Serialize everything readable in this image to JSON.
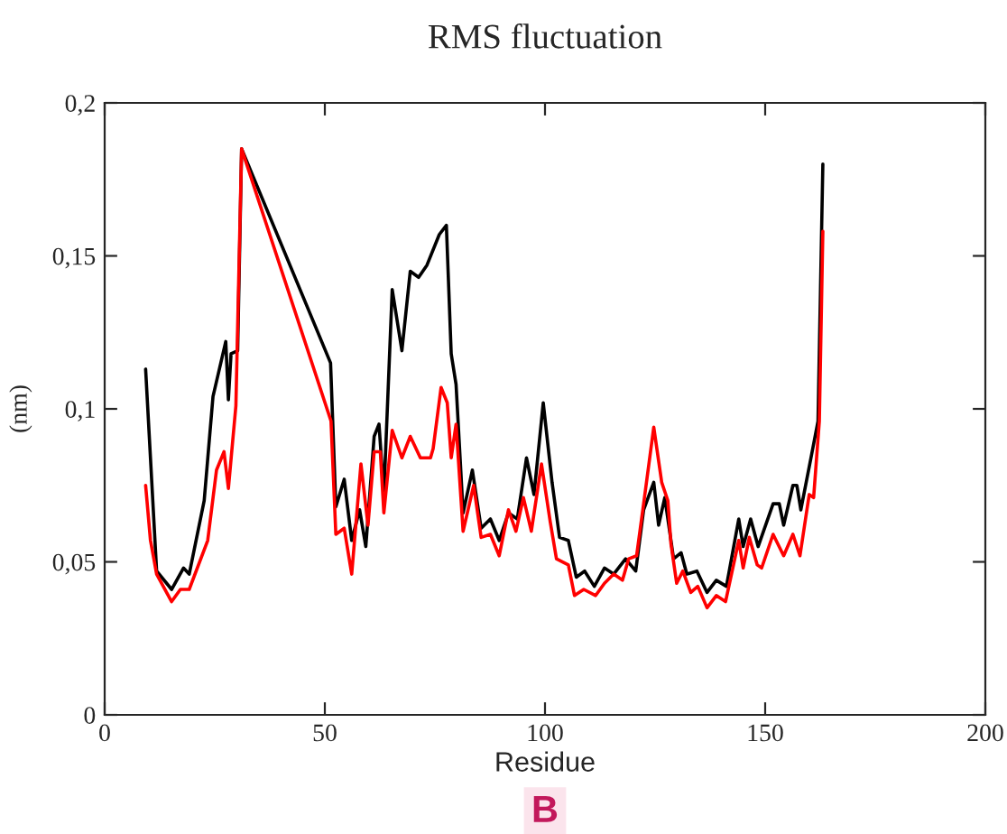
{
  "chart_data": {
    "type": "line",
    "title": "RMS fluctuation",
    "xlabel": "Residue",
    "ylabel": "(nm)",
    "xlim": [
      0,
      200
    ],
    "xticks": [
      0,
      50,
      100,
      150,
      200
    ],
    "ylim": [
      0,
      0.2
    ],
    "yticks": [
      {
        "value": 0,
        "label": "0"
      },
      {
        "value": 0.05,
        "label": "0,05"
      },
      {
        "value": 0.1,
        "label": "0,1"
      },
      {
        "value": 0.15,
        "label": "0,15"
      },
      {
        "value": 0.2,
        "label": "0,2"
      }
    ],
    "grid": false,
    "marker": "none",
    "line_style": "solid",
    "annotations": [
      "B"
    ],
    "series": [
      {
        "color": "#000000",
        "x": [
          9.3,
          11.8,
          15.2,
          17.9,
          19.2,
          22.6,
          24.6,
          27.5,
          28.1,
          28.7,
          30.2,
          31.1,
          51.3,
          52.5,
          54.4,
          56.1,
          57.9,
          59.3,
          61.2,
          62.3,
          63.4,
          65.3,
          67.5,
          69.4,
          71.3,
          73.2,
          76,
          77.6,
          78.7,
          79.8,
          81.4,
          83.5,
          85.5,
          87.6,
          89.6,
          91.7,
          93.7,
          95.8,
          97.5,
          99.6,
          101.6,
          103.3,
          105.3,
          107.1,
          109,
          111.2,
          113.5,
          115.6,
          118.3,
          120.6,
          122.4,
          124.7,
          125.8,
          127.2,
          129.2,
          130.9,
          132.2,
          134.5,
          136.8,
          138.9,
          141.2,
          144,
          145,
          146.7,
          148.4,
          151.8,
          153.2,
          154.2,
          156.3,
          157.2,
          158.1,
          160.4,
          162,
          163.1
        ],
        "values": [
          0.113,
          0.047,
          0.041,
          0.048,
          0.046,
          0.07,
          0.104,
          0.122,
          0.103,
          0.118,
          0.119,
          0.185,
          0.115,
          0.068,
          0.077,
          0.057,
          0.067,
          0.055,
          0.091,
          0.095,
          0.072,
          0.139,
          0.119,
          0.145,
          0.143,
          0.147,
          0.157,
          0.16,
          0.118,
          0.108,
          0.066,
          0.08,
          0.061,
          0.064,
          0.057,
          0.066,
          0.064,
          0.084,
          0.072,
          0.102,
          0.076,
          0.058,
          0.057,
          0.045,
          0.047,
          0.042,
          0.048,
          0.046,
          0.051,
          0.047,
          0.067,
          0.076,
          0.062,
          0.071,
          0.051,
          0.053,
          0.046,
          0.047,
          0.04,
          0.044,
          0.042,
          0.064,
          0.055,
          0.064,
          0.055,
          0.069,
          0.069,
          0.062,
          0.075,
          0.075,
          0.067,
          0.084,
          0.096,
          0.18
        ]
      },
      {
        "color": "#ff0000",
        "x": [
          9.3,
          10.4,
          11.8,
          15.2,
          17.2,
          19.2,
          23.4,
          25.4,
          27.1,
          28.1,
          29.8,
          31.1,
          51.4,
          52.5,
          54.4,
          56.1,
          58.2,
          59.8,
          61.2,
          62.6,
          63.4,
          65.3,
          67.5,
          69.4,
          71.7,
          74,
          74.6,
          76.4,
          77.8,
          78.7,
          79.8,
          81.4,
          83.8,
          85.5,
          87.6,
          89.6,
          91.7,
          93.4,
          95.1,
          96.9,
          99.2,
          101.2,
          102.6,
          105.3,
          106.7,
          108.8,
          111.5,
          113.5,
          115.6,
          117.6,
          119,
          120.8,
          122.4,
          124.7,
          126.5,
          127.9,
          128.6,
          129.9,
          131.3,
          133.1,
          134.7,
          136.8,
          138.9,
          141,
          144,
          145,
          146.4,
          148.2,
          149.2,
          151.8,
          154.2,
          156.3,
          157.9,
          160,
          161,
          162.3,
          163.1
        ],
        "values": [
          0.075,
          0.057,
          0.046,
          0.037,
          0.041,
          0.041,
          0.057,
          0.08,
          0.086,
          0.074,
          0.101,
          0.185,
          0.096,
          0.059,
          0.061,
          0.046,
          0.082,
          0.062,
          0.086,
          0.086,
          0.066,
          0.093,
          0.084,
          0.091,
          0.084,
          0.084,
          0.087,
          0.107,
          0.102,
          0.084,
          0.095,
          0.06,
          0.075,
          0.058,
          0.059,
          0.052,
          0.067,
          0.06,
          0.071,
          0.06,
          0.082,
          0.063,
          0.051,
          0.049,
          0.039,
          0.041,
          0.039,
          0.043,
          0.046,
          0.044,
          0.051,
          0.052,
          0.069,
          0.094,
          0.076,
          0.07,
          0.056,
          0.043,
          0.047,
          0.04,
          0.042,
          0.035,
          0.039,
          0.037,
          0.057,
          0.048,
          0.058,
          0.049,
          0.048,
          0.059,
          0.052,
          0.059,
          0.052,
          0.072,
          0.071,
          0.096,
          0.158
        ]
      }
    ]
  }
}
